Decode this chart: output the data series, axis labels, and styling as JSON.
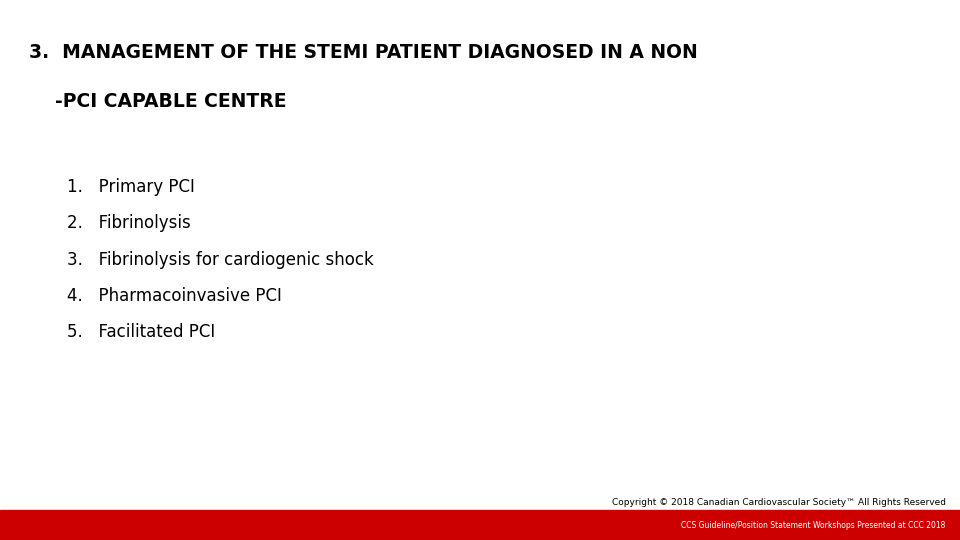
{
  "title_line1": "3.  MANAGEMENT OF THE STEMI PATIENT DIAGNOSED IN A NON",
  "title_line2": "    -PCI CAPABLE CENTRE",
  "items": [
    "1.   Primary PCI",
    "2.   Fibrinolysis",
    "3.   Fibrinolysis for cardiogenic shock",
    "4.   Pharmacoinvasive PCI",
    "5.   Facilitated PCI"
  ],
  "footer_line1": "Copyright © 2018 Canadian Cardiovascular Society™ All Rights Reserved",
  "footer_line2": "CCS Guideline/Position Statement Workshops Presented at CCC 2018",
  "bg_color": "#ffffff",
  "title_color": "#000000",
  "item_color": "#000000",
  "footer_bar_color": "#cc0000",
  "footer_text_color1": "#000000",
  "footer_text_color2": "#ffffff",
  "title_fontsize": 13.5,
  "item_fontsize": 12,
  "footer_fontsize1": 6.5,
  "footer_fontsize2": 5.5
}
